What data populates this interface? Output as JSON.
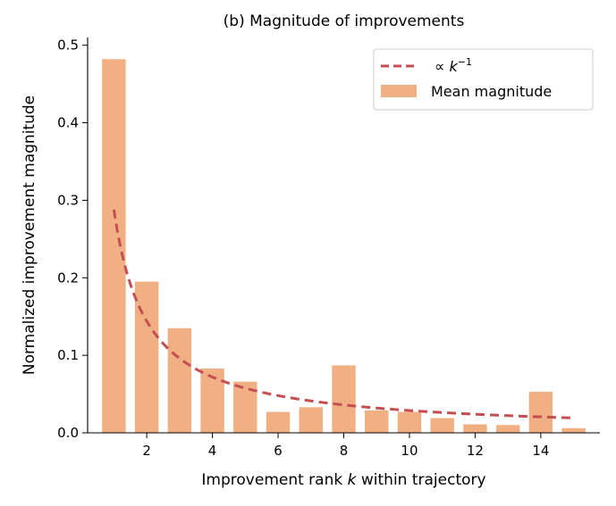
{
  "chart_data": {
    "type": "bar",
    "title": "(b) Magnitude of improvements",
    "xlabel": {
      "before": "Improvement rank ",
      "var": "k",
      "after": " within trajectory"
    },
    "ylabel": "Normalized improvement magnitude",
    "x": [
      1,
      2,
      3,
      4,
      5,
      6,
      7,
      8,
      9,
      10,
      11,
      12,
      13,
      14,
      15
    ],
    "series": [
      {
        "name": "Mean magnitude",
        "type": "bar",
        "color": "#f0b084",
        "values": [
          0.482,
          0.195,
          0.135,
          0.083,
          0.066,
          0.027,
          0.033,
          0.087,
          0.029,
          0.027,
          0.019,
          0.011,
          0.01,
          0.053,
          0.006
        ]
      },
      {
        "name": "∝ k^-1",
        "name_parts": {
          "prefix": "∝ ",
          "var": "k",
          "sup": "−1"
        },
        "type": "line",
        "style": "dashed",
        "color": "#c44e52",
        "coefficient": 0.288
      }
    ],
    "xlim": [
      0.2,
      15.8
    ],
    "ylim": [
      0,
      0.51
    ],
    "xticks": [
      "2",
      "4",
      "6",
      "8",
      "10",
      "12",
      "14"
    ],
    "xtick_values": [
      2,
      4,
      6,
      8,
      10,
      12,
      14
    ],
    "yticks": [
      "0.0",
      "0.1",
      "0.2",
      "0.3",
      "0.4",
      "0.5"
    ],
    "ytick_values": [
      0,
      0.1,
      0.2,
      0.3,
      0.4,
      0.5
    ],
    "grid": false,
    "legend": "top-right"
  }
}
